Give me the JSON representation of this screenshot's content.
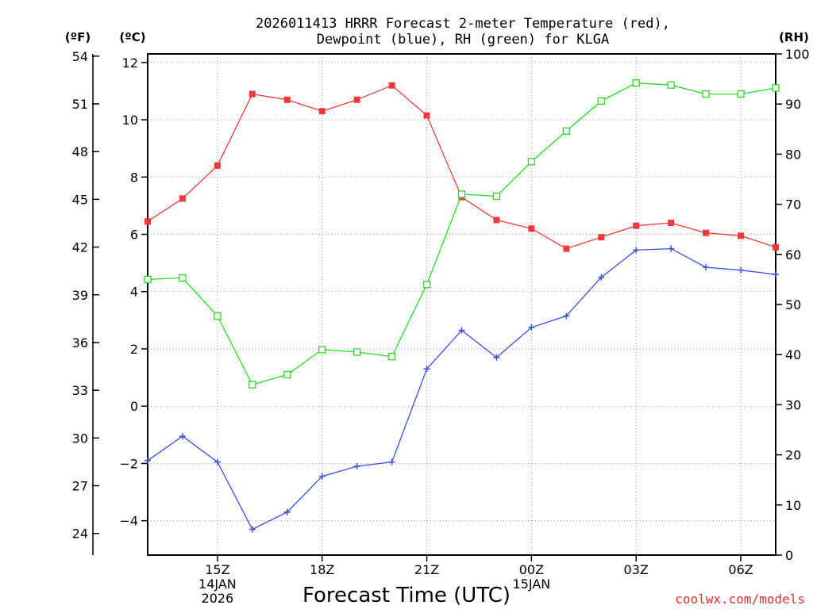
{
  "chart_data": {
    "type": "line",
    "title_line1": "2026011413 HRRR Forecast 2-meter Temperature (red),",
    "title_line2": "Dewpoint (blue), RH (green) for KLGA",
    "xlabel": "Forecast Time (UTC)",
    "credit": "coolwx.com/models",
    "unit_f": "(ºF)",
    "unit_c": "(ºC)",
    "unit_rh": "(RH)",
    "x_hours": [
      13,
      14,
      15,
      16,
      17,
      18,
      19,
      20,
      21,
      22,
      23,
      24,
      25,
      26,
      27,
      28,
      29,
      30,
      31
    ],
    "xlim": [
      13,
      31
    ],
    "x_ticks": [
      {
        "hour": 15,
        "label": "15Z",
        "sub1": "14JAN",
        "sub2": "2026"
      },
      {
        "hour": 18,
        "label": "18Z",
        "sub1": "",
        "sub2": ""
      },
      {
        "hour": 21,
        "label": "21Z",
        "sub1": "",
        "sub2": ""
      },
      {
        "hour": 24,
        "label": "00Z",
        "sub1": "15JAN",
        "sub2": ""
      },
      {
        "hour": 27,
        "label": "03Z",
        "sub1": "",
        "sub2": ""
      },
      {
        "hour": 30,
        "label": "06Z",
        "sub1": "",
        "sub2": ""
      }
    ],
    "celsius_axis": {
      "ylim": [
        -5.2,
        12.3
      ],
      "ticks": [
        -4,
        -2,
        0,
        2,
        4,
        6,
        8,
        10,
        12
      ]
    },
    "fahrenheit_axis": {
      "ticks": [
        24,
        27,
        30,
        33,
        36,
        39,
        42,
        45,
        48,
        51,
        54
      ]
    },
    "rh_axis": {
      "ylim": [
        0,
        100
      ],
      "ticks": [
        0,
        10,
        20,
        30,
        40,
        50,
        60,
        70,
        80,
        90,
        100
      ]
    },
    "series": [
      {
        "name": "Temperature",
        "axis": "celsius",
        "color": "#ee3a3a",
        "marker": "filled-square",
        "values": [
          6.45,
          7.25,
          8.4,
          10.9,
          10.7,
          10.3,
          10.7,
          11.2,
          10.15,
          7.3,
          6.5,
          6.2,
          5.5,
          5.9,
          6.3,
          6.4,
          6.05,
          5.95,
          5.55
        ]
      },
      {
        "name": "Dewpoint",
        "axis": "celsius",
        "color": "#3a4ee6",
        "marker": "plus",
        "values": [
          -1.9,
          -1.05,
          -1.95,
          -4.3,
          -3.7,
          -2.45,
          -2.1,
          -1.95,
          1.3,
          2.65,
          1.7,
          2.75,
          3.15,
          4.5,
          5.45,
          5.5,
          4.85,
          4.75,
          4.6
        ]
      },
      {
        "name": "RH",
        "axis": "rh",
        "color": "#22dd22",
        "marker": "open-square",
        "values": [
          55,
          55.3,
          47.7,
          34,
          36,
          41,
          40.5,
          39.6,
          54,
          72,
          71.6,
          78.5,
          84.6,
          90.6,
          94.2,
          93.8,
          92,
          92,
          93.2
        ]
      }
    ]
  }
}
